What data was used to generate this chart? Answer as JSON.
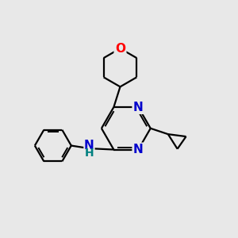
{
  "bg_color": "#e8e8e8",
  "bond_color": "#000000",
  "N_color": "#0000cc",
  "O_color": "#ff0000",
  "NH_color": "#0000cc",
  "H_color": "#008080",
  "line_width": 1.6,
  "font_size": 10,
  "figsize": [
    3.0,
    3.0
  ],
  "dpi": 100,
  "xlim": [
    0,
    10
  ],
  "ylim": [
    0,
    10
  ]
}
